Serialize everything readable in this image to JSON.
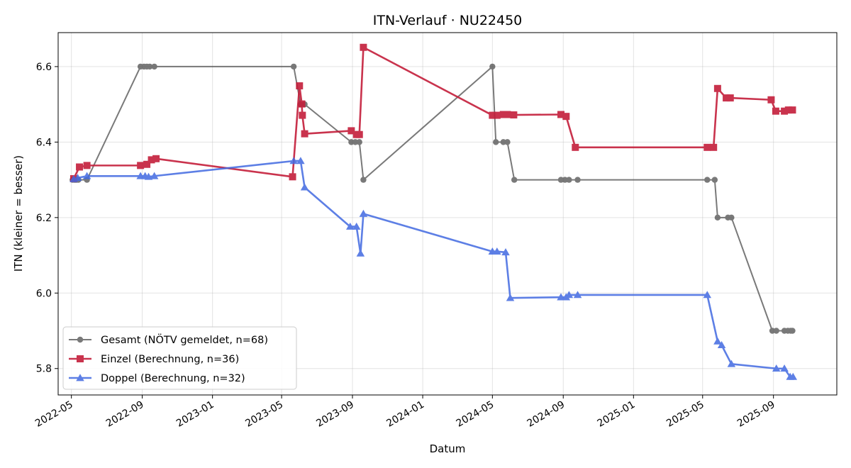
{
  "chart_data": {
    "type": "line",
    "title": "ITN-Verlauf · NU22450",
    "xlabel": "Datum",
    "ylabel": "ITN  (kleiner = besser)",
    "x_axis_type": "date",
    "xlim": [
      "2022-04-08",
      "2025-12-20"
    ],
    "ylim": [
      5.73,
      6.69
    ],
    "x_ticks": [
      "2022-05-01",
      "2022-09-01",
      "2023-01-01",
      "2023-05-01",
      "2023-09-01",
      "2024-01-01",
      "2024-05-01",
      "2024-09-01",
      "2025-01-01",
      "2025-05-01",
      "2025-09-01"
    ],
    "x_tick_labels": [
      "2022-05",
      "2022-09",
      "2023-01",
      "2023-05",
      "2023-09",
      "2024-01",
      "2024-05",
      "2024-09",
      "2025-01",
      "2025-05",
      "2025-09"
    ],
    "y_ticks": [
      5.8,
      6.0,
      6.2,
      6.4,
      6.6
    ],
    "y_tick_labels": [
      "5.8",
      "6.0",
      "6.2",
      "6.4",
      "6.6"
    ],
    "grid": true,
    "legend_position": "lower-left",
    "series": [
      {
        "name": "Gesamt (NÖTV gemeldet, n=68)",
        "color": "#4d4d4d",
        "marker": "circle",
        "points": [
          [
            "2022-05-03",
            6.3
          ],
          [
            "2022-05-06",
            6.3
          ],
          [
            "2022-05-08",
            6.3
          ],
          [
            "2022-05-10",
            6.3
          ],
          [
            "2022-05-13",
            6.3
          ],
          [
            "2022-05-28",
            6.3
          ],
          [
            "2022-08-29",
            6.6
          ],
          [
            "2022-09-04",
            6.6
          ],
          [
            "2022-09-09",
            6.6
          ],
          [
            "2022-09-14",
            6.6
          ],
          [
            "2022-09-22",
            6.6
          ],
          [
            "2023-05-22",
            6.6
          ],
          [
            "2023-06-03",
            6.5
          ],
          [
            "2023-06-10",
            6.5
          ],
          [
            "2023-08-30",
            6.4
          ],
          [
            "2023-09-06",
            6.4
          ],
          [
            "2023-09-13",
            6.4
          ],
          [
            "2023-09-20",
            6.3
          ],
          [
            "2024-05-01",
            6.6
          ],
          [
            "2024-05-07",
            6.4
          ],
          [
            "2024-05-20",
            6.4
          ],
          [
            "2024-05-27",
            6.4
          ],
          [
            "2024-06-08",
            6.3
          ],
          [
            "2024-08-28",
            6.3
          ],
          [
            "2024-09-04",
            6.3
          ],
          [
            "2024-09-11",
            6.3
          ],
          [
            "2024-09-26",
            6.3
          ],
          [
            "2025-05-09",
            6.3
          ],
          [
            "2025-05-22",
            6.3
          ],
          [
            "2025-05-27",
            6.2
          ],
          [
            "2025-06-14",
            6.2
          ],
          [
            "2025-06-20",
            6.2
          ],
          [
            "2025-08-30",
            5.9
          ],
          [
            "2025-09-06",
            5.9
          ],
          [
            "2025-09-20",
            5.9
          ],
          [
            "2025-09-26",
            5.9
          ],
          [
            "2025-10-01",
            5.9
          ],
          [
            "2025-10-04",
            5.9
          ]
        ]
      },
      {
        "name": "Einzel (Berechnung, n=36)",
        "color": "#c41e3a",
        "marker": "square",
        "points": [
          [
            "2022-05-05",
            6.303
          ],
          [
            "2022-05-15",
            6.334
          ],
          [
            "2022-05-28",
            6.338
          ],
          [
            "2022-08-29",
            6.338
          ],
          [
            "2022-09-09",
            6.341
          ],
          [
            "2022-09-17",
            6.353
          ],
          [
            "2022-09-25",
            6.356
          ],
          [
            "2023-05-20",
            6.308
          ],
          [
            "2023-06-01",
            6.549
          ],
          [
            "2023-06-05",
            6.501
          ],
          [
            "2023-06-06",
            6.471
          ],
          [
            "2023-06-10",
            6.422
          ],
          [
            "2023-08-30",
            6.43
          ],
          [
            "2023-09-08",
            6.42
          ],
          [
            "2023-09-13",
            6.42
          ],
          [
            "2023-09-20",
            6.651
          ],
          [
            "2024-05-01",
            6.471
          ],
          [
            "2024-05-09",
            6.471
          ],
          [
            "2024-05-20",
            6.473
          ],
          [
            "2024-05-27",
            6.473
          ],
          [
            "2024-06-07",
            6.472
          ],
          [
            "2024-08-28",
            6.473
          ],
          [
            "2024-09-06",
            6.468
          ],
          [
            "2024-09-22",
            6.386
          ],
          [
            "2025-05-09",
            6.386
          ],
          [
            "2025-05-20",
            6.386
          ],
          [
            "2025-05-27",
            6.542
          ],
          [
            "2025-06-11",
            6.517
          ],
          [
            "2025-06-18",
            6.517
          ],
          [
            "2025-08-28",
            6.512
          ],
          [
            "2025-09-05",
            6.482
          ],
          [
            "2025-09-20",
            6.482
          ],
          [
            "2025-09-27",
            6.485
          ],
          [
            "2025-10-04",
            6.485
          ]
        ]
      },
      {
        "name": "Doppel (Berechnung, n=32)",
        "color": "#4169e1",
        "marker": "triangle",
        "points": [
          [
            "2022-05-05",
            6.302
          ],
          [
            "2022-05-12",
            6.305
          ],
          [
            "2022-05-28",
            6.31
          ],
          [
            "2022-08-29",
            6.31
          ],
          [
            "2022-09-06",
            6.31
          ],
          [
            "2022-09-12",
            6.308
          ],
          [
            "2022-09-22",
            6.31
          ],
          [
            "2023-05-22",
            6.35
          ],
          [
            "2023-06-03",
            6.35
          ],
          [
            "2023-06-10",
            6.28
          ],
          [
            "2023-08-28",
            6.176
          ],
          [
            "2023-09-08",
            6.176
          ],
          [
            "2023-09-15",
            6.105
          ],
          [
            "2023-09-20",
            6.21
          ],
          [
            "2024-05-01",
            6.11
          ],
          [
            "2024-05-09",
            6.11
          ],
          [
            "2024-05-24",
            6.108
          ],
          [
            "2024-06-01",
            5.987
          ],
          [
            "2024-08-28",
            5.989
          ],
          [
            "2024-09-06",
            5.989
          ],
          [
            "2024-09-11",
            5.995
          ],
          [
            "2024-09-26",
            5.995
          ],
          [
            "2025-05-09",
            5.995
          ],
          [
            "2025-05-27",
            5.872
          ],
          [
            "2025-06-03",
            5.862
          ],
          [
            "2025-06-20",
            5.812
          ],
          [
            "2025-09-06",
            5.8
          ],
          [
            "2025-09-20",
            5.8
          ],
          [
            "2025-09-30",
            5.778
          ],
          [
            "2025-10-05",
            5.778
          ]
        ]
      }
    ]
  }
}
